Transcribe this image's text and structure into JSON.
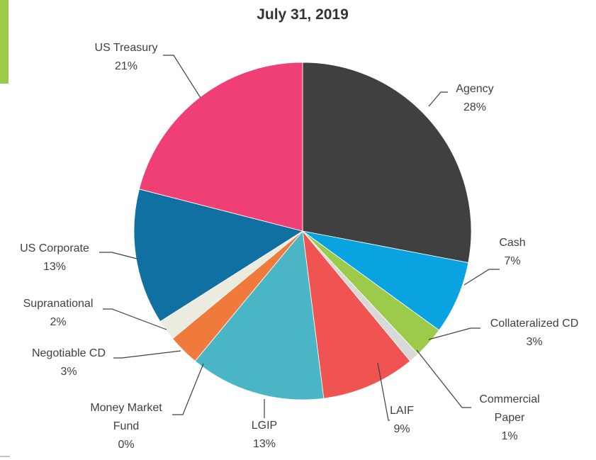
{
  "chart_data": {
    "type": "pie",
    "title": "July 31, 2019",
    "categories": [
      "Agency",
      "Cash",
      "Collateralized CD",
      "Commercial Paper",
      "LAIF",
      "LGIP",
      "Money Market Fund",
      "Negotiable CD",
      "Supranational",
      "US Corporate",
      "US Treasury"
    ],
    "values": [
      28,
      7,
      3,
      1,
      9,
      13,
      0,
      3,
      2,
      13,
      21
    ],
    "value_labels": [
      "28%",
      "7%",
      "3%",
      "1%",
      "9%",
      "13%",
      "0%",
      "3%",
      "2%",
      "13%",
      "21%"
    ],
    "colors": [
      "#404040",
      "#0aa3e2",
      "#9ccb4c",
      "#d9d9d9",
      "#ef5453",
      "#4ab5c4",
      "#8064a2",
      "#ef7a3c",
      "#ecebe0",
      "#0f70a1",
      "#ef3f74"
    ]
  }
}
